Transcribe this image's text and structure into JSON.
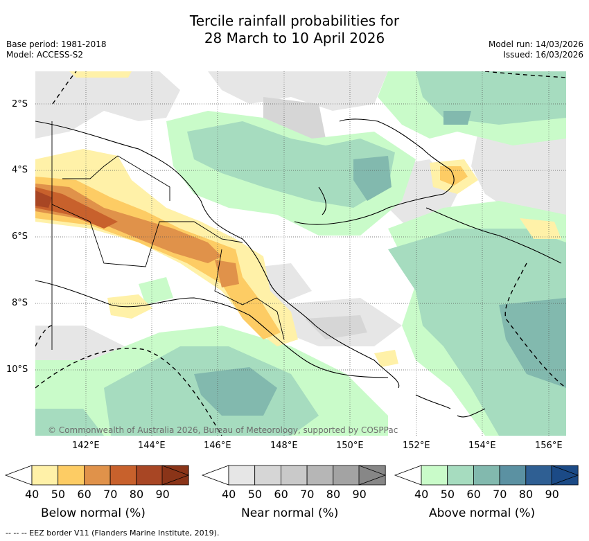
{
  "title_line1": "Tercile rainfall probabilities for",
  "title_line2": "28 March to 10 April 2026",
  "base_period": "Base period: 1981-2018",
  "model": "Model: ACCESS-S2",
  "model_run": "Model run: 14/03/2026",
  "issued": "Issued: 16/03/2026",
  "latitude_labels": [
    "2°S",
    "4°S",
    "6°S",
    "8°S",
    "10°S"
  ],
  "longitude_labels": [
    "142°E",
    "144°E",
    "146°E",
    "148°E",
    "150°E",
    "152°E",
    "154°E",
    "156°E"
  ],
  "copyright": "© Commonwealth of Australia 2026, Bureau of Meteorology, supported by COSPPac",
  "colorbars": [
    {
      "title": "Below normal (%)",
      "ticks": [
        "40",
        "50",
        "60",
        "70",
        "80",
        "90"
      ],
      "colors": [
        "#fff1a8",
        "#fdcc64",
        "#e0924a",
        "#c8612c",
        "#a84624",
        "#8a3418"
      ]
    },
    {
      "title": "Near normal (%)",
      "ticks": [
        "40",
        "50",
        "60",
        "70",
        "80",
        "90"
      ],
      "colors": [
        "#e6e6e6",
        "#d6d6d6",
        "#c9c9c9",
        "#b6b6b6",
        "#a3a3a3",
        "#878787"
      ]
    },
    {
      "title": "Above normal (%)",
      "ticks": [
        "40",
        "50",
        "60",
        "70",
        "80",
        "90"
      ],
      "colors": [
        "#c9fbc9",
        "#a6dcbf",
        "#82b9ae",
        "#5b91a2",
        "#2f5f93",
        "#1b4a86"
      ]
    }
  ],
  "footnote": "--  --  -- EEZ border V11 (Flanders Marine Institute, 2019)."
}
